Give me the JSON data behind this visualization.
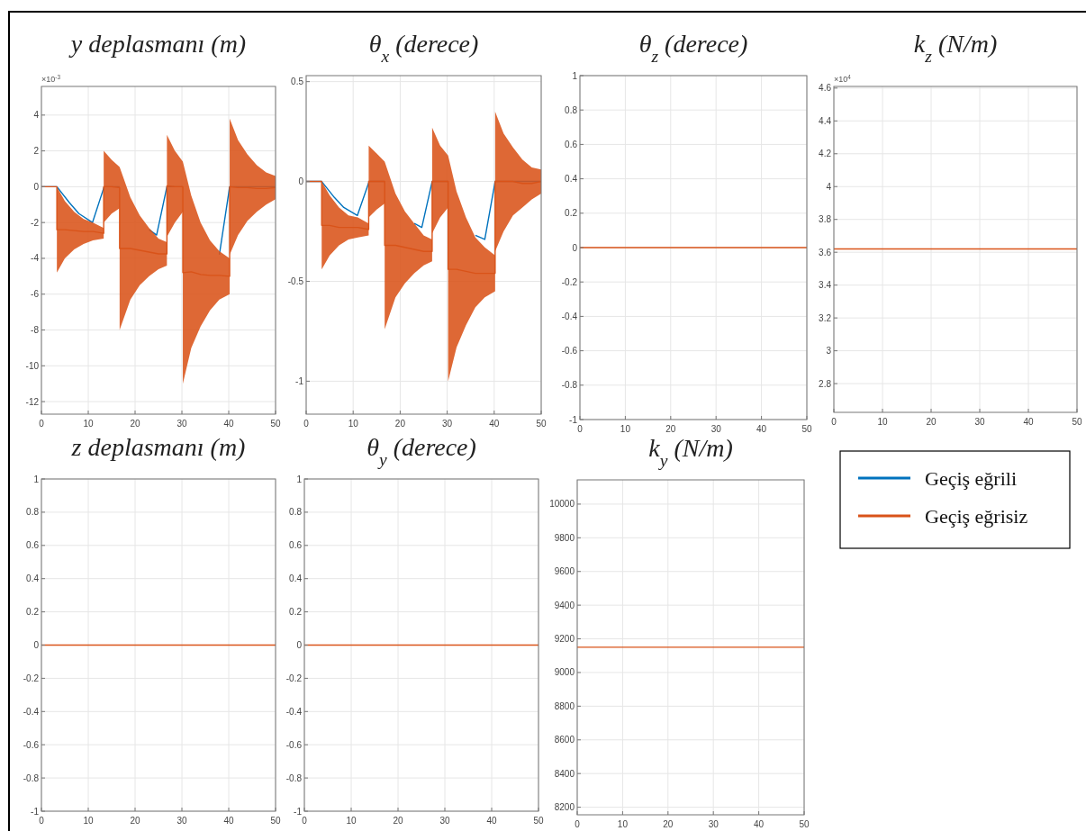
{
  "chart_data": [
    {
      "type": "line",
      "title": "y deplasmanı (m)",
      "annotations": [
        "×10$^{-3}$"
      ],
      "xlim": [
        0,
        50
      ],
      "xticks": [
        0,
        10,
        20,
        30,
        40,
        50
      ],
      "ylim": [
        -12.7,
        5.6
      ],
      "yticks": [
        -12,
        -10,
        -8,
        -6,
        -4,
        -2,
        0,
        2,
        4
      ],
      "grid": true,
      "series": [
        {
          "color": "#0072bd",
          "x": [
            0,
            3.3,
            6,
            8,
            10.9,
            13.4,
            16.7,
            19,
            21,
            23,
            24.6,
            26.8,
            30.2,
            32,
            34,
            36,
            38,
            40.2,
            50
          ],
          "values": [
            0,
            0,
            -0.9,
            -1.5,
            -2.0,
            0,
            0,
            null,
            null,
            -2.4,
            -2.7,
            0,
            0,
            null,
            null,
            null,
            -3.8,
            0,
            0
          ]
        },
        {
          "color": "#d95319",
          "x": [
            0,
            3.3,
            3.3,
            5,
            7,
            9,
            11,
            13.3,
            13.3,
            15,
            16.7,
            16.7,
            19,
            21,
            23,
            25,
            26.8,
            26.8,
            28.5,
            30.2,
            30.2,
            32,
            34,
            36,
            38,
            40.2,
            40.2,
            42,
            44,
            46,
            48,
            50
          ],
          "values": [
            0,
            0,
            -2.4,
            -2.4,
            -2.45,
            -2.5,
            -2.5,
            -2.6,
            0,
            0,
            -0.05,
            -3.45,
            -3.45,
            -3.55,
            -3.65,
            -3.75,
            -3.75,
            0.05,
            0,
            0,
            -4.8,
            -4.75,
            -4.9,
            -4.95,
            -4.95,
            -5.0,
            0,
            -0.05,
            -0.05,
            -0.1,
            -0.1,
            -0.05
          ],
          "upper": [
            0,
            0,
            0,
            -0.8,
            -1.4,
            -1.8,
            -2.0,
            -2.3,
            2.0,
            1.5,
            1.1,
            1.1,
            -0.6,
            -1.6,
            -2.3,
            -2.9,
            -3.1,
            2.9,
            2.0,
            1.4,
            1.4,
            -0.5,
            -2.0,
            -3.0,
            -3.6,
            -4.0,
            3.8,
            2.6,
            1.8,
            1.2,
            0.8,
            0.6
          ],
          "lower": [
            0,
            0,
            -4.8,
            -4.0,
            -3.5,
            -3.2,
            -3.0,
            -2.9,
            -2.0,
            -1.5,
            -1.2,
            -8.0,
            -6.3,
            -5.5,
            -5.0,
            -4.6,
            -4.4,
            -2.8,
            -2.0,
            -1.4,
            -11.0,
            -9.0,
            -7.8,
            -6.9,
            -6.3,
            -6.0,
            -3.8,
            -2.7,
            -1.9,
            -1.4,
            -1.0,
            -0.7
          ]
        }
      ]
    },
    {
      "type": "line",
      "title": "θ$_{x}$ (derece)",
      "xlim": [
        0,
        50
      ],
      "xticks": [
        0,
        10,
        20,
        30,
        40,
        50
      ],
      "ylim": [
        -1.165,
        0.53
      ],
      "yticks": [
        -1,
        -0.5,
        0,
        0.5
      ],
      "grid": true,
      "series": [
        {
          "color": "#0072bd",
          "x": [
            0,
            3.3,
            6,
            8,
            10.9,
            13.4,
            16.7,
            19,
            21,
            23,
            24.6,
            26.8,
            30.2,
            32,
            34,
            36,
            38,
            40.2,
            50
          ],
          "values": [
            0,
            0,
            -0.08,
            -0.13,
            -0.17,
            0,
            0,
            null,
            null,
            -0.21,
            -0.23,
            0,
            0,
            null,
            null,
            -0.27,
            -0.29,
            0,
            0
          ]
        },
        {
          "color": "#d95319",
          "x": [
            0,
            3.3,
            3.3,
            5,
            7,
            9,
            11,
            13.3,
            13.3,
            15,
            16.7,
            16.7,
            19,
            21,
            23,
            25,
            26.8,
            26.8,
            28.5,
            30.2,
            30.2,
            32,
            34,
            36,
            38,
            40.2,
            40.2,
            42,
            44,
            46,
            48,
            50
          ],
          "values": [
            0,
            0,
            -0.22,
            -0.22,
            -0.23,
            -0.23,
            -0.23,
            -0.24,
            0,
            0,
            0,
            -0.32,
            -0.32,
            -0.33,
            -0.34,
            -0.35,
            -0.35,
            0,
            0,
            0,
            -0.44,
            -0.44,
            -0.45,
            -0.46,
            -0.46,
            -0.46,
            0,
            0,
            0,
            -0.01,
            -0.01,
            0
          ],
          "upper": [
            0,
            0,
            0,
            -0.07,
            -0.13,
            -0.17,
            -0.18,
            -0.21,
            0.18,
            0.14,
            0.1,
            0.1,
            -0.06,
            -0.15,
            -0.21,
            -0.27,
            -0.29,
            0.27,
            0.18,
            0.13,
            0.13,
            -0.05,
            -0.18,
            -0.28,
            -0.33,
            -0.37,
            0.35,
            0.24,
            0.17,
            0.11,
            0.07,
            0.06
          ],
          "lower": [
            0,
            0,
            -0.44,
            -0.37,
            -0.32,
            -0.29,
            -0.28,
            -0.27,
            -0.18,
            -0.14,
            -0.11,
            -0.74,
            -0.58,
            -0.51,
            -0.46,
            -0.42,
            -0.4,
            -0.26,
            -0.18,
            -0.13,
            -1.0,
            -0.83,
            -0.72,
            -0.63,
            -0.58,
            -0.55,
            -0.35,
            -0.25,
            -0.17,
            -0.13,
            -0.09,
            -0.06
          ]
        }
      ]
    },
    {
      "type": "line",
      "title": "θ$_{z}$ (derece)",
      "xlim": [
        0,
        50
      ],
      "xticks": [
        0,
        10,
        20,
        30,
        40,
        50
      ],
      "ylim": [
        -1,
        1
      ],
      "yticks": [
        -1,
        -0.8,
        -0.6,
        -0.4,
        -0.2,
        0,
        0.2,
        0.4,
        0.6,
        0.8,
        1
      ],
      "grid": true,
      "series": [
        {
          "color": "#d95319",
          "x": [
            0,
            50
          ],
          "values": [
            0,
            0
          ]
        }
      ]
    },
    {
      "type": "line",
      "title": "k$_{z}$ (N/m)",
      "annotations": [
        "×10$^{4}$"
      ],
      "xlim": [
        0,
        50
      ],
      "xticks": [
        0,
        10,
        20,
        30,
        40,
        50
      ],
      "ylim": [
        2.625,
        4.61
      ],
      "yticks": [
        2.8,
        3,
        3.2,
        3.4,
        3.6,
        3.8,
        4,
        4.2,
        4.4,
        4.6
      ],
      "grid": true,
      "series": [
        {
          "color": "#d95319",
          "x": [
            0,
            50
          ],
          "values": [
            3.62,
            3.62
          ]
        }
      ]
    },
    {
      "type": "line",
      "title": "z deplasmanı (m)",
      "xlim": [
        0,
        50
      ],
      "xticks": [
        0,
        10,
        20,
        30,
        40,
        50
      ],
      "ylim": [
        -1,
        1
      ],
      "yticks": [
        -1,
        -0.8,
        -0.6,
        -0.4,
        -0.2,
        0,
        0.2,
        0.4,
        0.6,
        0.8,
        1
      ],
      "grid": true,
      "series": [
        {
          "color": "#d95319",
          "x": [
            0,
            50
          ],
          "values": [
            0,
            0
          ]
        }
      ]
    },
    {
      "type": "line",
      "title": "θ$_{y}$ (derece)",
      "xlim": [
        0,
        50
      ],
      "xticks": [
        0,
        10,
        20,
        30,
        40,
        50
      ],
      "ylim": [
        -1,
        1
      ],
      "yticks": [
        -1,
        -0.8,
        -0.6,
        -0.4,
        -0.2,
        0,
        0.2,
        0.4,
        0.6,
        0.8,
        1
      ],
      "grid": true,
      "series": [
        {
          "color": "#d95319",
          "x": [
            0,
            50
          ],
          "values": [
            0,
            0
          ]
        }
      ]
    },
    {
      "type": "line",
      "title": "k$_{y}$ (N/m)",
      "xlim": [
        0,
        50
      ],
      "xticks": [
        0,
        10,
        20,
        30,
        40,
        50
      ],
      "ylim": [
        8155,
        10144
      ],
      "yticks": [
        8200,
        8400,
        8600,
        8800,
        9000,
        9200,
        9400,
        9600,
        9800,
        10000
      ],
      "grid": true,
      "legend": "right",
      "series": [
        {
          "name": "Geçiş eğrili",
          "color": "#0072bd"
        },
        {
          "name": "Geçiş eğrisiz",
          "color": "#d95319",
          "x": [
            0,
            50
          ],
          "values": [
            9150,
            9150
          ]
        }
      ]
    }
  ]
}
